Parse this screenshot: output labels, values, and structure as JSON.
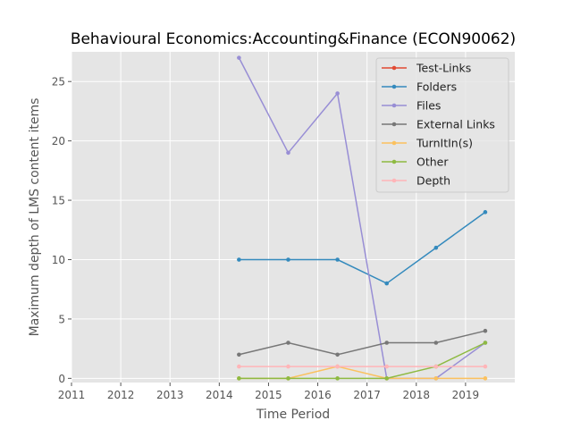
{
  "chart_data": {
    "type": "line",
    "title": "Behavioural Economics:Accounting&Finance (ECON90062)",
    "xlabel": "Time Period",
    "ylabel": "Maximum depth of LMS content items",
    "xlim": [
      2011,
      2020
    ],
    "ylim": [
      -0.35,
      27.5
    ],
    "xticks": [
      2011,
      2012,
      2013,
      2014,
      2015,
      2016,
      2017,
      2018,
      2019
    ],
    "yticks": [
      0,
      5,
      10,
      15,
      20,
      25
    ],
    "grid": true,
    "legend_position": "top-right",
    "x": [
      2014.4,
      2015.4,
      2016.4,
      2017.4,
      2018.4,
      2019.4
    ],
    "series": [
      {
        "name": "Test-Links",
        "color": "#E24A33",
        "values": [
          null,
          null,
          null,
          null,
          null,
          null
        ]
      },
      {
        "name": "Folders",
        "color": "#348ABD",
        "values": [
          10,
          10,
          10,
          8,
          11,
          14
        ]
      },
      {
        "name": "Files",
        "color": "#988ED5",
        "values": [
          27,
          19,
          24,
          0,
          0,
          3
        ]
      },
      {
        "name": "External Links",
        "color": "#777777",
        "values": [
          2,
          3,
          2,
          3,
          3,
          4
        ]
      },
      {
        "name": "TurnItIn(s)",
        "color": "#FBC15E",
        "values": [
          0,
          0,
          1,
          0,
          0,
          0
        ]
      },
      {
        "name": "Other",
        "color": "#8EBA42",
        "values": [
          0,
          0,
          0,
          0,
          1,
          3
        ]
      },
      {
        "name": "Depth",
        "color": "#FFB5B8",
        "values": [
          1,
          1,
          1,
          1,
          1,
          1
        ]
      }
    ]
  }
}
